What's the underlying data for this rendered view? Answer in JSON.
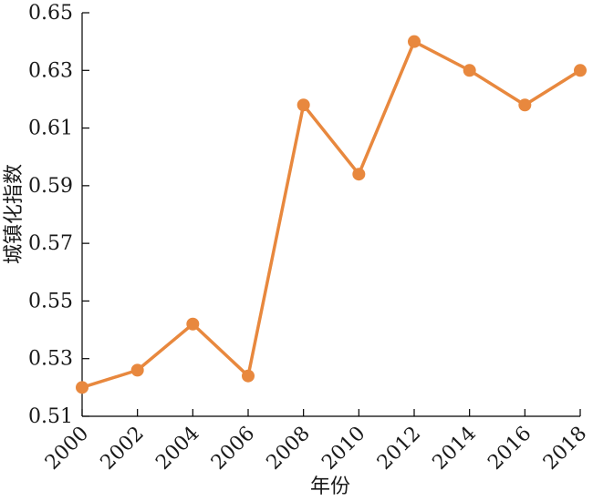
{
  "chart_data": {
    "type": "line",
    "title": "",
    "xlabel": "年份",
    "ylabel": "城镇化指数",
    "x": [
      2000,
      2002,
      2004,
      2006,
      2008,
      2010,
      2012,
      2014,
      2016,
      2018
    ],
    "x_tick_labels": [
      "2000",
      "2002",
      "2004",
      "2006",
      "2008",
      "2010",
      "2012",
      "2014",
      "2016",
      "2018"
    ],
    "y_tick_labels": [
      "0.51",
      "0.53",
      "0.55",
      "0.57",
      "0.59",
      "0.61",
      "0.63",
      "0.65"
    ],
    "y_ticks": [
      0.51,
      0.53,
      0.55,
      0.57,
      0.59,
      0.61,
      0.63,
      0.65
    ],
    "ylim": [
      0.51,
      0.65
    ],
    "xlim": [
      2000,
      2018
    ],
    "grid": false,
    "legend": "none",
    "series": [
      {
        "values": [
          0.52,
          0.526,
          0.542,
          0.524,
          0.618,
          0.594,
          0.64,
          0.63,
          0.618,
          0.63
        ],
        "color": "#E8883E",
        "marker": "circle"
      }
    ]
  }
}
